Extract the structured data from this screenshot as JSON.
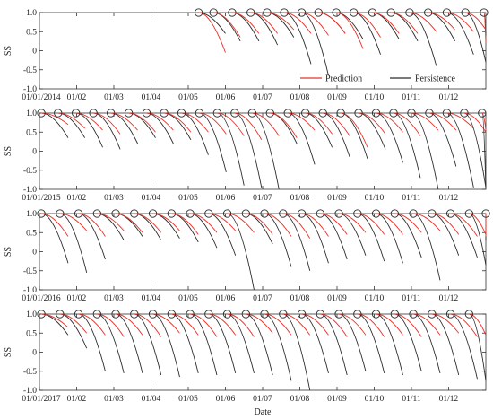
{
  "chart_data": {
    "type": "line",
    "xlabel": "Date",
    "ylabel": "SS",
    "ylim": [
      -1.0,
      1.0
    ],
    "yticks": [
      "1.0",
      "0.5",
      "0",
      "-0.5",
      "-1.0"
    ],
    "legend": {
      "placement": "bottom-right",
      "entries": [
        "Prediction",
        "Persistence"
      ]
    },
    "colors": {
      "Prediction": "#e8322a",
      "Persistence": "#2b2b2b",
      "markers": "#2b2b2b"
    },
    "marker": "open-circle",
    "panels": [
      {
        "year": "2014",
        "xticks": [
          "01/01/2014",
          "01/02",
          "01/03",
          "01/04",
          "01/05",
          "01/06",
          "01/07",
          "01/08",
          "01/09",
          "01/10",
          "01/11",
          "01/12"
        ],
        "legend_shown": true,
        "forecasts": [
          {
            "t0": 4.28,
            "pred": -0.05,
            "pers": 0.45
          },
          {
            "t0": 4.68,
            "pred": 0.35,
            "pers": 0.25
          },
          {
            "t0": 5.18,
            "pred": 0.45,
            "pers": 0.25
          },
          {
            "t0": 5.68,
            "pred": 0.45,
            "pers": 0.15
          },
          {
            "t0": 6.12,
            "pred": 0.55,
            "pers": 0.35
          },
          {
            "t0": 6.58,
            "pred": 0.45,
            "pers": -0.35
          },
          {
            "t0": 7.05,
            "pred": 0.4,
            "pers": -0.65
          },
          {
            "t0": 7.5,
            "pred": 0.45,
            "pers": 0.45
          },
          {
            "t0": 7.98,
            "pred": 0.05,
            "pers": 0.3
          },
          {
            "t0": 8.45,
            "pred": 0.35,
            "pers": -0.1
          },
          {
            "t0": 8.95,
            "pred": 0.45,
            "pers": 0.3
          },
          {
            "t0": 9.45,
            "pred": 0.45,
            "pers": 0.25
          },
          {
            "t0": 9.95,
            "pred": 0.5,
            "pers": -0.4
          },
          {
            "t0": 10.45,
            "pred": 0.55,
            "pers": 0.25
          },
          {
            "t0": 10.95,
            "pred": 0.5,
            "pers": -0.1
          },
          {
            "t0": 11.45,
            "pred": 0.55,
            "pers": -0.3
          },
          {
            "t0": 11.95,
            "pred": 0.2,
            "pers": 0.4
          }
        ]
      },
      {
        "year": "2015",
        "xticks": [
          "01/01/2015",
          "01/02",
          "01/03",
          "01/04",
          "01/05",
          "01/06",
          "01/07",
          "01/08",
          "01/09",
          "01/10",
          "01/11",
          "01/12"
        ],
        "legend_shown": false,
        "forecasts": [
          {
            "t0": 0.05,
            "pred": 0.7,
            "pers": 0.35
          },
          {
            "t0": 0.5,
            "pred": 0.6,
            "pers": 0.35
          },
          {
            "t0": 0.98,
            "pred": 0.55,
            "pers": 0.1
          },
          {
            "t0": 1.45,
            "pred": 0.45,
            "pers": 0.05
          },
          {
            "t0": 1.92,
            "pred": 0.55,
            "pers": 0.2
          },
          {
            "t0": 2.4,
            "pred": 0.5,
            "pers": 0.35
          },
          {
            "t0": 2.88,
            "pred": 0.55,
            "pers": 0.2
          },
          {
            "t0": 3.35,
            "pred": 0.5,
            "pers": 0.3
          },
          {
            "t0": 3.82,
            "pred": 0.5,
            "pers": -0.1
          },
          {
            "t0": 4.3,
            "pred": 0.45,
            "pers": -0.55
          },
          {
            "t0": 4.78,
            "pred": 0.4,
            "pers": -0.9
          },
          {
            "t0": 5.25,
            "pred": 0.3,
            "pers": -0.95
          },
          {
            "t0": 5.72,
            "pred": 0.4,
            "pers": -1.05
          },
          {
            "t0": 6.2,
            "pred": 0.35,
            "pers": 0.2
          },
          {
            "t0": 6.68,
            "pred": 0.55,
            "pers": -0.35
          },
          {
            "t0": 7.15,
            "pred": 0.45,
            "pers": 0.1
          },
          {
            "t0": 7.62,
            "pred": 0.4,
            "pers": -0.15
          },
          {
            "t0": 8.1,
            "pred": 0.1,
            "pers": -0.2
          },
          {
            "t0": 8.58,
            "pred": 0.45,
            "pers": 0.05
          },
          {
            "t0": 9.05,
            "pred": 0.5,
            "pers": -0.3
          },
          {
            "t0": 9.52,
            "pred": 0.4,
            "pers": -0.7
          },
          {
            "t0": 10.0,
            "pred": 0.55,
            "pers": -1.0
          },
          {
            "t0": 10.48,
            "pred": 0.55,
            "pers": -0.4
          },
          {
            "t0": 10.95,
            "pred": 0.6,
            "pers": -0.95
          },
          {
            "t0": 11.42,
            "pred": 0.5,
            "pers": -0.95
          },
          {
            "t0": 11.9,
            "pred": 0.55,
            "pers": -1.0
          }
        ]
      },
      {
        "year": "2016",
        "xticks": [
          "01/01/2016",
          "01/02",
          "01/03",
          "01/04",
          "01/05",
          "01/06",
          "01/07",
          "01/08",
          "01/09",
          "01/10",
          "01/11",
          "01/12"
        ],
        "legend_shown": false,
        "forecasts": [
          {
            "t0": 0.05,
            "pred": 0.4,
            "pers": -0.3
          },
          {
            "t0": 0.55,
            "pred": 0.55,
            "pers": -0.55
          },
          {
            "t0": 1.05,
            "pred": 0.4,
            "pers": -0.2
          },
          {
            "t0": 1.55,
            "pred": 0.55,
            "pers": 0.3
          },
          {
            "t0": 2.05,
            "pred": 0.5,
            "pers": 0.4
          },
          {
            "t0": 2.55,
            "pred": 0.5,
            "pers": 0.3
          },
          {
            "t0": 3.05,
            "pred": 0.55,
            "pers": 0.35
          },
          {
            "t0": 3.55,
            "pred": 0.45,
            "pers": 0.25
          },
          {
            "t0": 4.05,
            "pred": 0.5,
            "pers": 0.1
          },
          {
            "t0": 4.55,
            "pred": 0.55,
            "pers": -0.1
          },
          {
            "t0": 5.05,
            "pred": 0.5,
            "pers": -1.0
          },
          {
            "t0": 5.55,
            "pred": 0.45,
            "pers": 0.2
          },
          {
            "t0": 6.05,
            "pred": 0.4,
            "pers": -0.4
          },
          {
            "t0": 6.55,
            "pred": 0.35,
            "pers": -0.5
          },
          {
            "t0": 7.05,
            "pred": 0.4,
            "pers": -0.3
          },
          {
            "t0": 7.55,
            "pred": 0.45,
            "pers": -0.2
          },
          {
            "t0": 8.05,
            "pred": 0.5,
            "pers": -0.1
          },
          {
            "t0": 8.55,
            "pred": 0.45,
            "pers": -0.25
          },
          {
            "t0": 9.05,
            "pred": 0.45,
            "pers": -0.3
          },
          {
            "t0": 9.55,
            "pred": 0.5,
            "pers": -0.15
          },
          {
            "t0": 10.05,
            "pred": 0.55,
            "pers": -0.75
          },
          {
            "t0": 10.55,
            "pred": 0.45,
            "pers": -0.1
          },
          {
            "t0": 11.05,
            "pred": 0.4,
            "pers": -0.15
          },
          {
            "t0": 11.55,
            "pred": 0.45,
            "pers": -0.35
          },
          {
            "t0": 12.0,
            "pred": 0.4,
            "pers": 0.3
          }
        ]
      },
      {
        "year": "2017",
        "xticks": [
          "01/01/2017",
          "01/02",
          "01/03",
          "01/04",
          "01/05",
          "01/06",
          "01/07",
          "01/08",
          "01/09",
          "01/10",
          "01/11",
          "01/12"
        ],
        "legend_shown": false,
        "forecasts": [
          {
            "t0": 0.05,
            "pred": 0.65,
            "pers": 0.45
          },
          {
            "t0": 0.55,
            "pred": 0.5,
            "pers": 0.1
          },
          {
            "t0": 1.05,
            "pred": 0.45,
            "pers": -0.5
          },
          {
            "t0": 1.55,
            "pred": 0.4,
            "pers": -0.55
          },
          {
            "t0": 2.05,
            "pred": 0.45,
            "pers": -0.55
          },
          {
            "t0": 2.55,
            "pred": 0.4,
            "pers": -0.6
          },
          {
            "t0": 3.05,
            "pred": 0.5,
            "pers": -0.65
          },
          {
            "t0": 3.55,
            "pred": 0.45,
            "pers": -0.55
          },
          {
            "t0": 4.05,
            "pred": 0.4,
            "pers": -0.6
          },
          {
            "t0": 4.55,
            "pred": 0.45,
            "pers": -0.55
          },
          {
            "t0": 5.05,
            "pred": 0.4,
            "pers": -0.55
          },
          {
            "t0": 5.55,
            "pred": 0.5,
            "pers": -0.6
          },
          {
            "t0": 6.05,
            "pred": 0.45,
            "pers": -0.75
          },
          {
            "t0": 6.55,
            "pred": 0.45,
            "pers": -1.0
          },
          {
            "t0": 7.05,
            "pred": 0.45,
            "pers": -0.55
          },
          {
            "t0": 7.55,
            "pred": 0.4,
            "pers": -0.6
          },
          {
            "t0": 8.05,
            "pred": 0.45,
            "pers": -0.5
          },
          {
            "t0": 8.55,
            "pred": 0.4,
            "pers": -0.55
          },
          {
            "t0": 9.05,
            "pred": 0.45,
            "pers": -0.6
          },
          {
            "t0": 9.55,
            "pred": 0.4,
            "pers": -0.5
          },
          {
            "t0": 10.05,
            "pred": 0.45,
            "pers": -0.55
          },
          {
            "t0": 10.55,
            "pred": 0.5,
            "pers": -0.6
          },
          {
            "t0": 11.05,
            "pred": 0.4,
            "pers": -0.7
          },
          {
            "t0": 11.55,
            "pred": 0.45,
            "pers": -0.75
          }
        ]
      }
    ]
  }
}
